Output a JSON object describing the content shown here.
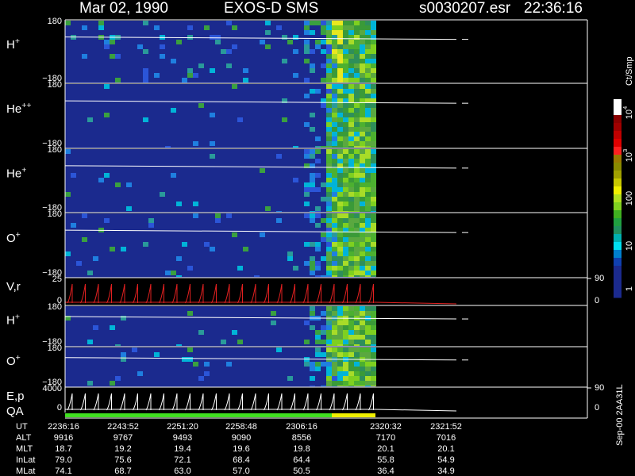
{
  "header": {
    "date": "Mar 02, 1990",
    "instrument": "EXOS-D SMS",
    "file": "s0030207.esr",
    "time": "22:36:16"
  },
  "panels": [
    {
      "label": {
        "base": "H",
        "sup": "+"
      },
      "ticks": [
        "180",
        "−180"
      ]
    },
    {
      "label": {
        "base": "He",
        "sup": "++"
      },
      "ticks": [
        "180",
        "−180"
      ]
    },
    {
      "label": {
        "base": "He",
        "sup": "+"
      },
      "ticks": [
        "180",
        "−180"
      ]
    },
    {
      "label": {
        "base": "O",
        "sup": "+"
      },
      "ticks": [
        "180",
        "−180"
      ]
    },
    {
      "label": {
        "base": "V,r"
      },
      "ticks": [
        "25",
        "0"
      ],
      "right_ticks": [
        "90",
        "0"
      ]
    },
    {
      "label": {
        "base": "H",
        "sup": "+"
      },
      "ticks": [
        "180",
        "−180"
      ]
    },
    {
      "label": {
        "base": "O",
        "sup": "+"
      },
      "ticks": [
        "180",
        "−180"
      ]
    },
    {
      "label": {
        "base": "E,p"
      },
      "label2": "QA",
      "ticks": [
        "4000",
        "0"
      ],
      "right_ticks": [
        "90",
        "0"
      ]
    }
  ],
  "colorbar": {
    "unit": "Ct/Smp",
    "labels": [
      {
        "base": "10",
        "sup": "4"
      },
      {
        "base": "10",
        "sup": "3"
      },
      {
        "base": "100"
      },
      {
        "base": "10"
      },
      {
        "base": "1"
      }
    ]
  },
  "table": {
    "rows": [
      {
        "label": "UT",
        "values": [
          "2236:16",
          "2243:52",
          "2251:20",
          "2258:48",
          "2306:16",
          "2320:32",
          "2321:52"
        ]
      },
      {
        "label": "ALT",
        "values": [
          "9916",
          "9767",
          "9493",
          "9090",
          "8556",
          "7170",
          "7016"
        ]
      },
      {
        "label": "MLT",
        "values": [
          "18.7",
          "19.2",
          "19.4",
          "19.6",
          "19.8",
          "20.1",
          "20.1"
        ]
      },
      {
        "label": "InLat",
        "values": [
          "79.0",
          "75.6",
          "72.1",
          "68.4",
          "64.4",
          "55.8",
          "54.9"
        ]
      },
      {
        "label": "MLat",
        "values": [
          "74.1",
          "68.7",
          "63.0",
          "57.0",
          "50.5",
          "36.4",
          "34.9"
        ]
      }
    ]
  },
  "footer": "Sep-00  2AA31L"
}
